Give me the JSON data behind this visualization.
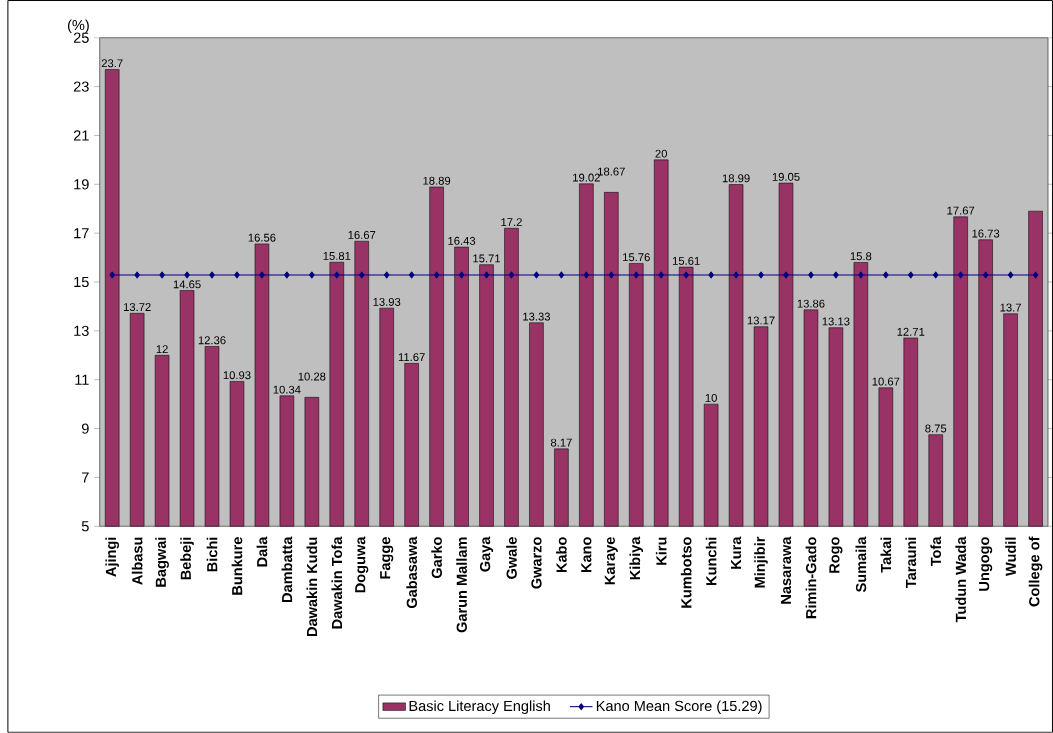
{
  "chart_data": {
    "type": "bar",
    "ylabel": "(%)",
    "categories": [
      "Ajingi",
      "Albasu",
      "Bagwai",
      "Bebeji",
      "Bichi",
      "Bunkure",
      "Dala",
      "Dambatta",
      "Dawakin Kudu",
      "Dawakin Tofa",
      "Doguwa",
      "Fagge",
      "Gabasawa",
      "Garko",
      "Garun Mallam",
      "Gaya",
      "Gwale",
      "Gwarzo",
      "Kabo",
      "Kano",
      "Karaye",
      "Kibiya",
      "Kiru",
      "Kumbotso",
      "Kunchi",
      "Kura",
      "Minjibir",
      "Nasarawa",
      "Rimin-Gado",
      "Rogo",
      "Sumaila",
      "Takai",
      "Tarauni",
      "Tofa",
      "Tudun Wada",
      "Ungogo",
      "Wudil",
      "College of"
    ],
    "series": [
      {
        "name": "Basic Literacy English",
        "color": "#993366",
        "values": [
          23.7,
          13.72,
          12,
          14.65,
          12.36,
          10.93,
          16.56,
          10.34,
          10.28,
          15.81,
          16.67,
          13.93,
          11.67,
          18.89,
          16.43,
          15.71,
          17.2,
          13.33,
          8.17,
          19.02,
          18.67,
          15.76,
          20,
          15.61,
          10,
          18.99,
          13.17,
          19.05,
          13.86,
          13.13,
          15.8,
          10.67,
          12.71,
          8.75,
          17.67,
          16.73,
          13.7,
          17.9
        ],
        "value_labels": [
          "23.7",
          "13.72",
          "12",
          "14.65",
          "12.36",
          "10.93",
          "16.56",
          "10.34",
          "10.28",
          "15.81",
          "16.67",
          "13.93",
          "11.67",
          "18.89",
          "16.43",
          "15.71",
          "17.2",
          "13.33",
          "8.17",
          "19.02",
          "18.67",
          "15.76",
          "20",
          "15.61",
          "10",
          "18.99",
          "13.17",
          "19.05",
          "13.86",
          "13.13",
          "15.8",
          "10.67",
          "12.71",
          "8.75",
          "17.67",
          "16.73",
          "13.7",
          null
        ]
      },
      {
        "name": "Kano Mean Score (15.29)",
        "type": "line",
        "color": "#000080",
        "marker": "diamond",
        "values": [
          15.29,
          15.29,
          15.29,
          15.29,
          15.29,
          15.29,
          15.29,
          15.29,
          15.29,
          15.29,
          15.29,
          15.29,
          15.29,
          15.29,
          15.29,
          15.29,
          15.29,
          15.29,
          15.29,
          15.29,
          15.29,
          15.29,
          15.29,
          15.29,
          15.29,
          15.29,
          15.29,
          15.29,
          15.29,
          15.29,
          15.29,
          15.29,
          15.29,
          15.29,
          15.29,
          15.29,
          15.29,
          15.29
        ]
      }
    ],
    "ylim": [
      5,
      25
    ],
    "yticks": [
      5,
      7,
      9,
      11,
      13,
      15,
      17,
      19,
      21,
      23,
      25
    ],
    "legend": "bottom"
  }
}
